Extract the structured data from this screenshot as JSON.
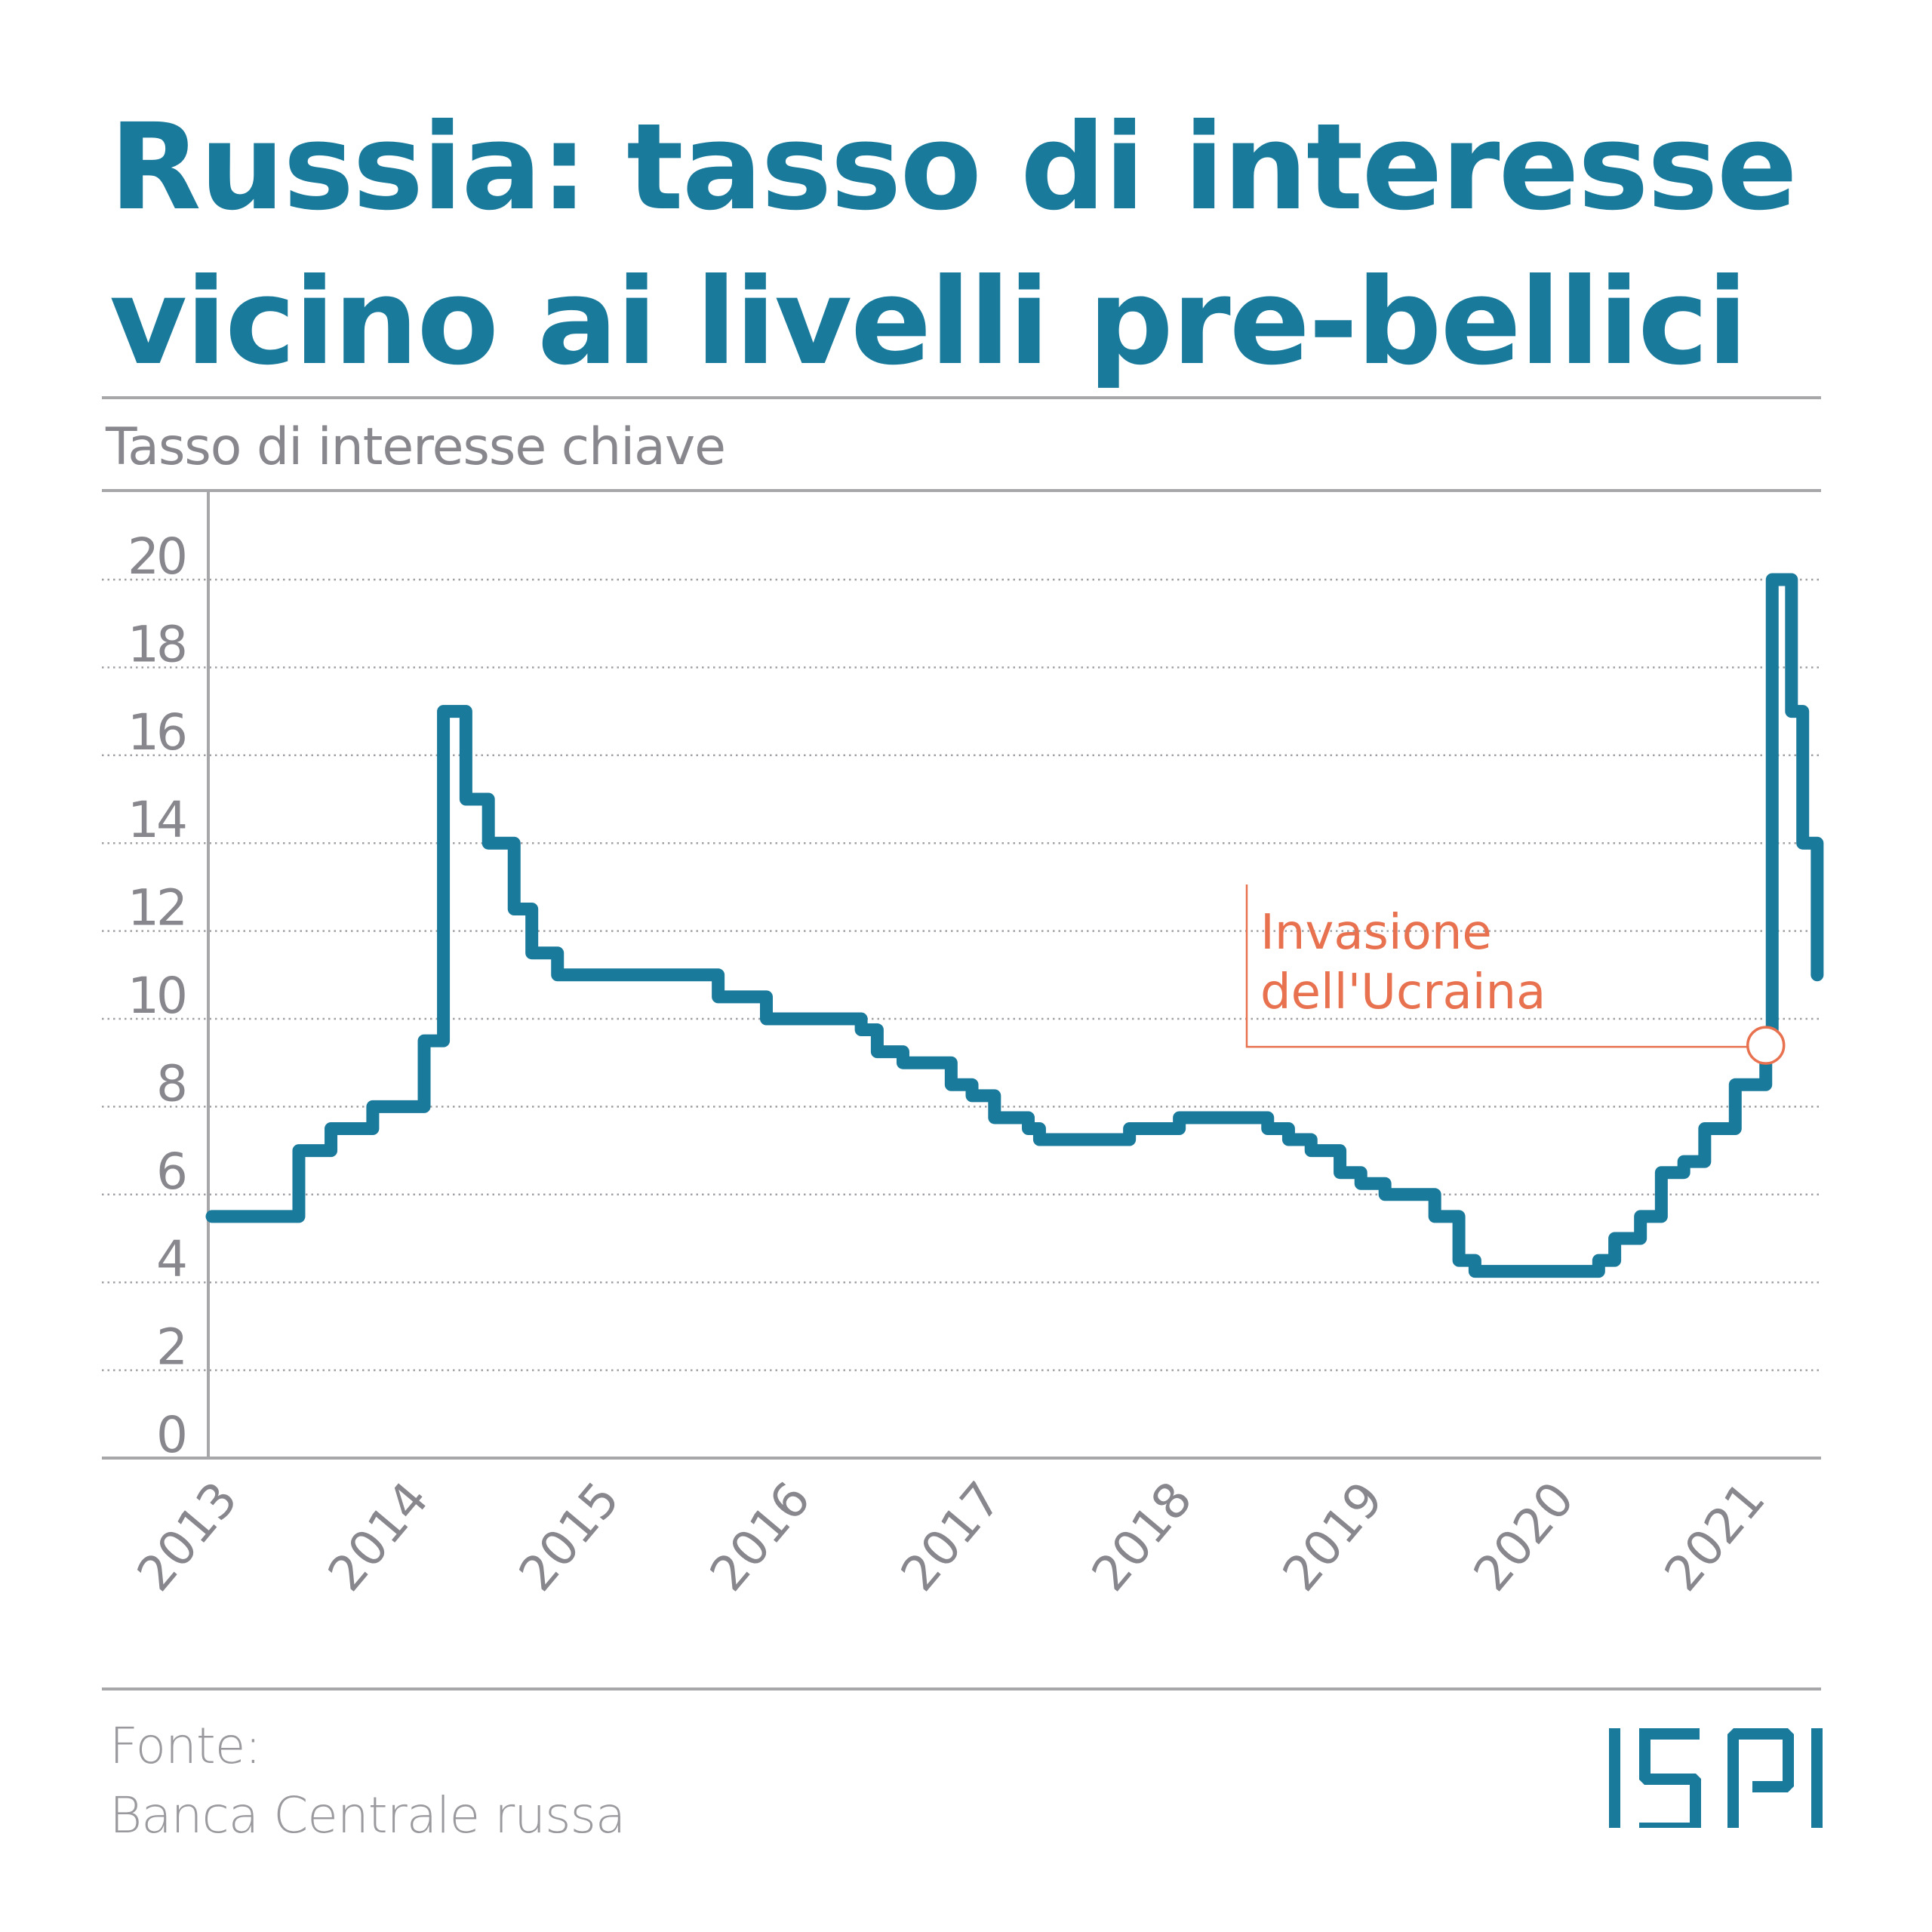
{
  "title": {
    "line1": "Russia: tasso di interesse",
    "line2": "vicino ai livelli pre-bellici"
  },
  "subtitle": "Tasso di interesse chiave",
  "source": {
    "label": "Fonte:",
    "text": "Banca Centrale russa"
  },
  "logo": "ISPI",
  "annotation": {
    "line1": "Invasione",
    "line2": "dell'Ucraina"
  },
  "colors": {
    "title": "#1a7a9b",
    "line": "#1a7a9b",
    "annotation": "#e8714f",
    "axis_text": "#87878d",
    "rule": "#a7a7aa",
    "grid": "#a0a0a4"
  },
  "chart_data": {
    "type": "line",
    "subtype": "step",
    "title": "Russia: tasso di interesse vicino ai livelli pre-bellici",
    "ylabel": "Tasso di interesse chiave",
    "xlabel": "",
    "ylim": [
      0,
      20
    ],
    "yticks": [
      0,
      2,
      4,
      6,
      8,
      10,
      12,
      14,
      16,
      18,
      20
    ],
    "xtick_labels": [
      "2013",
      "2014",
      "2015",
      "2016",
      "2017",
      "2018",
      "2019",
      "2020",
      "2021"
    ],
    "grid": "horizontal dotted",
    "legend": "none",
    "series": [
      {
        "name": "Tasso di interesse chiave",
        "points_note": "x = fraction of horizontal plot span (0 = left axis, 1 = right edge); y = rate %",
        "steps": [
          {
            "x": 0.0,
            "y": 5.5
          },
          {
            "x": 0.054,
            "y": 7.0
          },
          {
            "x": 0.074,
            "y": 7.5
          },
          {
            "x": 0.1,
            "y": 8.0
          },
          {
            "x": 0.132,
            "y": 9.5
          },
          {
            "x": 0.144,
            "y": 17.0
          },
          {
            "x": 0.158,
            "y": 15.0
          },
          {
            "x": 0.172,
            "y": 14.0
          },
          {
            "x": 0.188,
            "y": 12.5
          },
          {
            "x": 0.199,
            "y": 11.5
          },
          {
            "x": 0.215,
            "y": 11.0
          },
          {
            "x": 0.315,
            "y": 10.5
          },
          {
            "x": 0.345,
            "y": 10.0
          },
          {
            "x": 0.404,
            "y": 9.75
          },
          {
            "x": 0.414,
            "y": 9.25
          },
          {
            "x": 0.43,
            "y": 9.0
          },
          {
            "x": 0.46,
            "y": 8.5
          },
          {
            "x": 0.473,
            "y": 8.25
          },
          {
            "x": 0.487,
            "y": 7.75
          },
          {
            "x": 0.508,
            "y": 7.5
          },
          {
            "x": 0.515,
            "y": 7.25
          },
          {
            "x": 0.571,
            "y": 7.5
          },
          {
            "x": 0.602,
            "y": 7.75
          },
          {
            "x": 0.657,
            "y": 7.5
          },
          {
            "x": 0.67,
            "y": 7.25
          },
          {
            "x": 0.684,
            "y": 7.0
          },
          {
            "x": 0.702,
            "y": 6.5
          },
          {
            "x": 0.715,
            "y": 6.25
          },
          {
            "x": 0.73,
            "y": 6.0
          },
          {
            "x": 0.761,
            "y": 5.5
          },
          {
            "x": 0.776,
            "y": 4.5
          },
          {
            "x": 0.786,
            "y": 4.25
          },
          {
            "x": 0.863,
            "y": 4.5
          },
          {
            "x": 0.873,
            "y": 5.0
          },
          {
            "x": 0.889,
            "y": 5.5
          },
          {
            "x": 0.902,
            "y": 6.5
          },
          {
            "x": 0.916,
            "y": 6.75
          },
          {
            "x": 0.929,
            "y": 7.5
          },
          {
            "x": 0.948,
            "y": 8.5
          },
          {
            "x": 0.967,
            "y": 9.5
          },
          {
            "x": 0.971,
            "y": 20.0
          },
          {
            "x": 0.983,
            "y": 17.0
          },
          {
            "x": 0.99,
            "y": 14.0
          },
          {
            "x": 0.999,
            "y": 11.0
          }
        ]
      }
    ],
    "annotations": [
      {
        "text": "Invasione dell'Ucraina",
        "x": 0.967,
        "y": 9.5,
        "marker": "circle"
      }
    ]
  }
}
